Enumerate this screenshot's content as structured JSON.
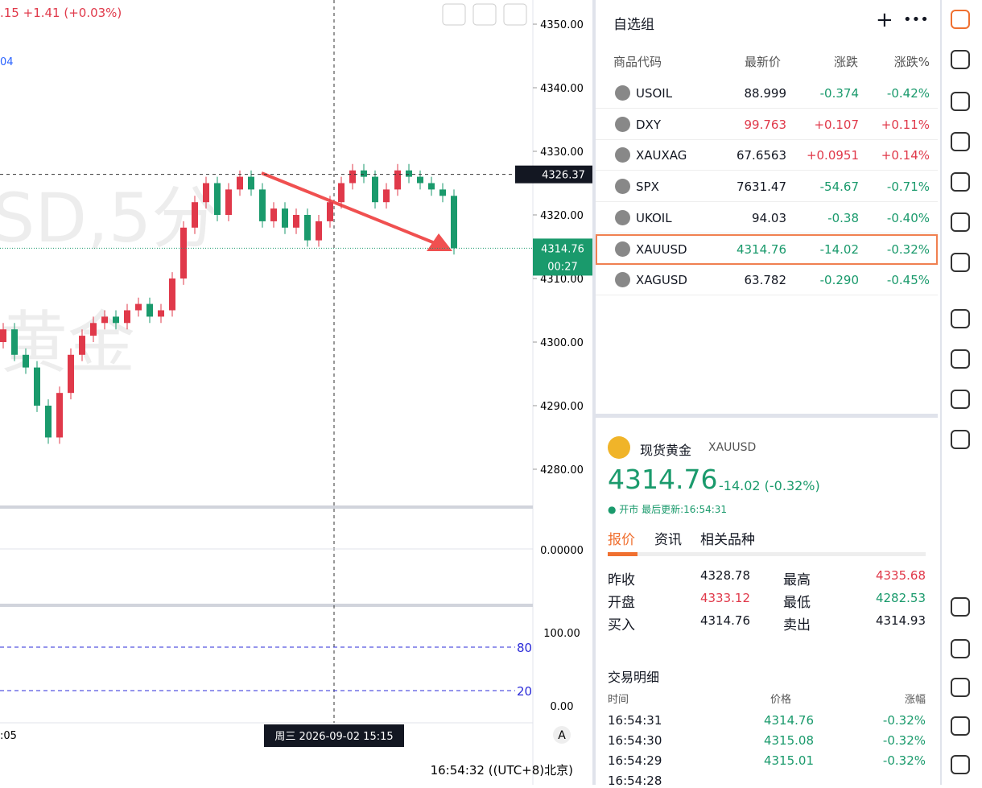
{
  "chart": {
    "type": "candlestick",
    "header_change": ".15 +1.41 (+0.03%)",
    "indicator_text": "04",
    "watermark": "SD,5分",
    "watermark2": "黄金",
    "ylim": [
      4274.68,
      4353.8
    ],
    "yticks": [
      {
        "value": 4350,
        "label": "4350.00"
      },
      {
        "value": 4340,
        "label": "4340.00"
      },
      {
        "value": 4330,
        "label": "4330.00"
      },
      {
        "value": 4320,
        "label": "4320.00"
      },
      {
        "value": 4310,
        "label": "4310.00"
      },
      {
        "value": 4300,
        "label": "4300.00"
      },
      {
        "value": 4290,
        "label": "4290.00"
      },
      {
        "value": 4280,
        "label": "4280.00"
      }
    ],
    "open": [
      4300,
      4302,
      4298,
      4296,
      4290,
      4285,
      4292,
      4298,
      4301,
      4303,
      4304,
      4303,
      4305,
      4306,
      4304,
      4305,
      4310,
      4318,
      4322,
      4325,
      4320,
      4324,
      4326,
      4324,
      4319,
      4321,
      4318,
      4320,
      4316,
      4319,
      4322,
      4325,
      4327,
      4326,
      4322,
      4324,
      4327,
      4326,
      4325,
      4324,
      4323
    ],
    "high": [
      4303,
      4303,
      4299,
      4297,
      4291,
      4293,
      4299,
      4302,
      4304,
      4305,
      4305,
      4306,
      4307,
      4307,
      4306,
      4311,
      4319,
      4323,
      4326,
      4326,
      4325,
      4327,
      4327,
      4325,
      4322,
      4322,
      4321,
      4321,
      4320,
      4323,
      4326,
      4328,
      4328,
      4327,
      4325,
      4328,
      4328,
      4327,
      4326,
      4325,
      4324
    ],
    "low": [
      4299,
      4297,
      4295,
      4289,
      4284,
      4284,
      4291,
      4297,
      4300,
      4302,
      4302,
      4302,
      4304,
      4303,
      4303,
      4304,
      4309,
      4317,
      4321,
      4319,
      4319,
      4323,
      4323,
      4318,
      4318,
      4317,
      4317,
      4315,
      4315,
      4318,
      4321,
      4324,
      4325,
      4321,
      4321,
      4323,
      4325,
      4324,
      4323,
      4322,
      4313.76
    ],
    "close": [
      4302,
      4298,
      4296,
      4290,
      4285,
      4292,
      4298,
      4301,
      4303,
      4304,
      4303,
      4305,
      4306,
      4304,
      4305,
      4310,
      4318,
      4322,
      4325,
      4320,
      4324,
      4326,
      4324,
      4319,
      4321,
      4318,
      4320,
      4316,
      4319,
      4322,
      4325,
      4327,
      4326,
      4322,
      4324,
      4327,
      4326,
      4325,
      4324,
      4323,
      4314.76
    ],
    "up_color": "#e0394a",
    "down_color": "#1a9a6c",
    "crosshair_price": {
      "value": 4326.37,
      "label": "4326.37"
    },
    "last_price": {
      "value": 4314.76,
      "label": "4314.76"
    },
    "countdown": "00:27",
    "time_label": "周三 2026-09-02  15:15",
    "x_label": ":05",
    "auto_button": "A",
    "clock": "16:54:32 ((UTC+8)北京)",
    "macd_label": "0.00000",
    "kdj_ticks": [
      "100.00",
      "0.00"
    ],
    "kdj_levels": [
      "80",
      "20"
    ]
  },
  "watchlist": {
    "title": "自选组",
    "columns": [
      "商品代码",
      "最新价",
      "涨跌",
      "涨跌%"
    ],
    "rows": [
      {
        "symbol": "USOIL",
        "price": "88.999",
        "change": "-0.374",
        "pct": "-0.42%",
        "color": "#1a9a6c",
        "price_color": "#131722"
      },
      {
        "symbol": "DXY",
        "price": "99.763",
        "change": "+0.107",
        "pct": "+0.11%",
        "color": "#e0394a",
        "price_color": "#e0394a"
      },
      {
        "symbol": "XAUXAG",
        "price": "67.6563",
        "change": "+0.0951",
        "pct": "+0.14%",
        "color": "#e0394a",
        "price_color": "#131722"
      },
      {
        "symbol": "SPX",
        "price": "7631.47",
        "change": "-54.67",
        "pct": "-0.71%",
        "color": "#1a9a6c",
        "price_color": "#131722"
      },
      {
        "symbol": "UKOIL",
        "price": "94.03",
        "change": "-0.38",
        "pct": "-0.40%",
        "color": "#1a9a6c",
        "price_color": "#131722"
      },
      {
        "symbol": "XAUUSD",
        "price": "4314.76",
        "change": "-14.02",
        "pct": "-0.32%",
        "color": "#1a9a6c",
        "price_color": "#1a9a6c"
      },
      {
        "symbol": "XAGUSD",
        "price": "63.782",
        "change": "-0.290",
        "pct": "-0.45%",
        "color": "#1a9a6c",
        "price_color": "#131722"
      }
    ]
  },
  "detail": {
    "name": "现货黄金",
    "symbol": "XAUUSD",
    "price": "4314.76",
    "change": "-14.02 (-0.32%)",
    "status": "● 开市 最后更新:16:54:31",
    "tabs": [
      "报价",
      "资讯",
      "相关品种"
    ],
    "stats": [
      [
        "昨收",
        "4328.78",
        "最高",
        "4335.68"
      ],
      [
        "开盘",
        "4333.12",
        "最低",
        "4282.53"
      ],
      [
        "买入",
        "4314.76",
        "卖出",
        "4314.93"
      ]
    ],
    "trades_title": "交易明细",
    "trade_columns": [
      "时间",
      "价格",
      "涨幅"
    ],
    "trades": [
      [
        "16:54:31",
        "4314.76",
        "-0.32%"
      ],
      [
        "16:54:30",
        "4315.08",
        "-0.32%"
      ],
      [
        "16:54:29",
        "4315.01",
        "-0.32%"
      ],
      [
        "16:54:28",
        "",
        ""
      ]
    ]
  }
}
